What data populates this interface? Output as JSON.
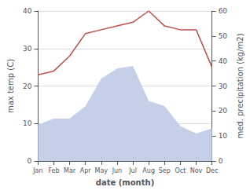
{
  "chart_data": {
    "type": "line",
    "xlabel": "date (month)",
    "ylabel": "max temp (C)",
    "y2label": "med. precipitation (kg/m2)",
    "categories": [
      "Jan",
      "Feb",
      "Mar",
      "Apr",
      "May",
      "Jun",
      "Jul",
      "Aug",
      "Sep",
      "Oct",
      "Nov",
      "Dec"
    ],
    "series": [
      {
        "type": "area",
        "color": "#c5cfe8",
        "axis": "y2",
        "values": [
          14.5,
          17,
          17,
          22,
          33,
          37,
          38,
          24,
          22,
          14,
          11,
          13
        ]
      },
      {
        "type": "line",
        "color": "#c0504d",
        "values": [
          23,
          24,
          28,
          34,
          35,
          36,
          37,
          40,
          36,
          35,
          35,
          25
        ]
      }
    ],
    "ylim": [
      0,
      40
    ],
    "yticks": [
      0,
      10,
      20,
      30,
      40
    ],
    "y2lim": [
      0,
      60
    ],
    "y2ticks": [
      0,
      10,
      20,
      30,
      40,
      50,
      60
    ],
    "grid": true
  }
}
